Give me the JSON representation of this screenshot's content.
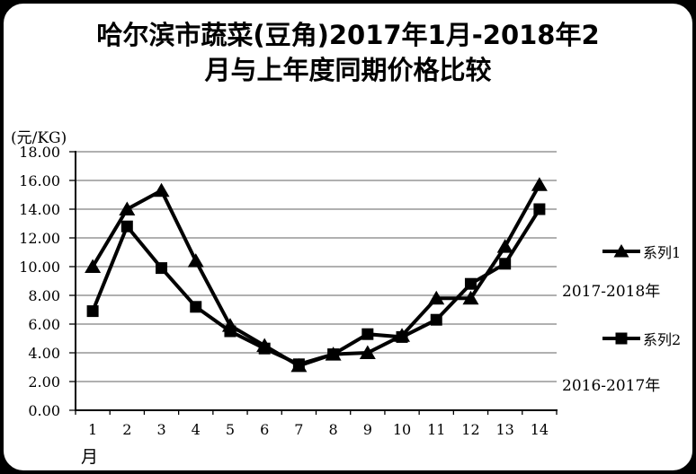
{
  "colors": {
    "background": "#ffffff",
    "frame_border": "#000000",
    "series": "#000000",
    "gridline": "#808080",
    "axis": "#000000",
    "text": "#000000"
  },
  "chart_data": {
    "type": "line",
    "title": "哈尔滨市蔬菜(豆角)2017年1月-2018年2月与上年度同期价格比较",
    "title_lines": [
      "哈尔滨市蔬菜(豆角)2017年1月-2018年2",
      "月与上年度同期价格比较"
    ],
    "unit_label": "(元/KG)",
    "xlabel": "月",
    "categories": [
      "1",
      "2",
      "3",
      "4",
      "5",
      "6",
      "7",
      "8",
      "9",
      "10",
      "11",
      "12",
      "13",
      "14"
    ],
    "y_ticks": [
      "18.00",
      "16.00",
      "14.00",
      "12.00",
      "10.00",
      "8.00",
      "6.00",
      "4.00",
      "2.00",
      "0.00"
    ],
    "ylim": [
      0,
      18
    ],
    "y_step": 2,
    "grid": true,
    "legend_position": "right",
    "series": [
      {
        "name": "系列1",
        "period": "2017-2018年",
        "marker": "triangle",
        "values": [
          10.0,
          14.0,
          15.3,
          10.4,
          5.9,
          4.5,
          3.1,
          3.9,
          4.0,
          5.2,
          7.8,
          7.8,
          11.4,
          15.7
        ]
      },
      {
        "name": "系列2",
        "period": "2016-2017年",
        "marker": "square",
        "values": [
          6.9,
          12.8,
          9.9,
          7.2,
          5.5,
          4.3,
          3.2,
          3.9,
          5.3,
          5.1,
          6.3,
          8.8,
          10.2,
          14.0
        ]
      }
    ]
  }
}
